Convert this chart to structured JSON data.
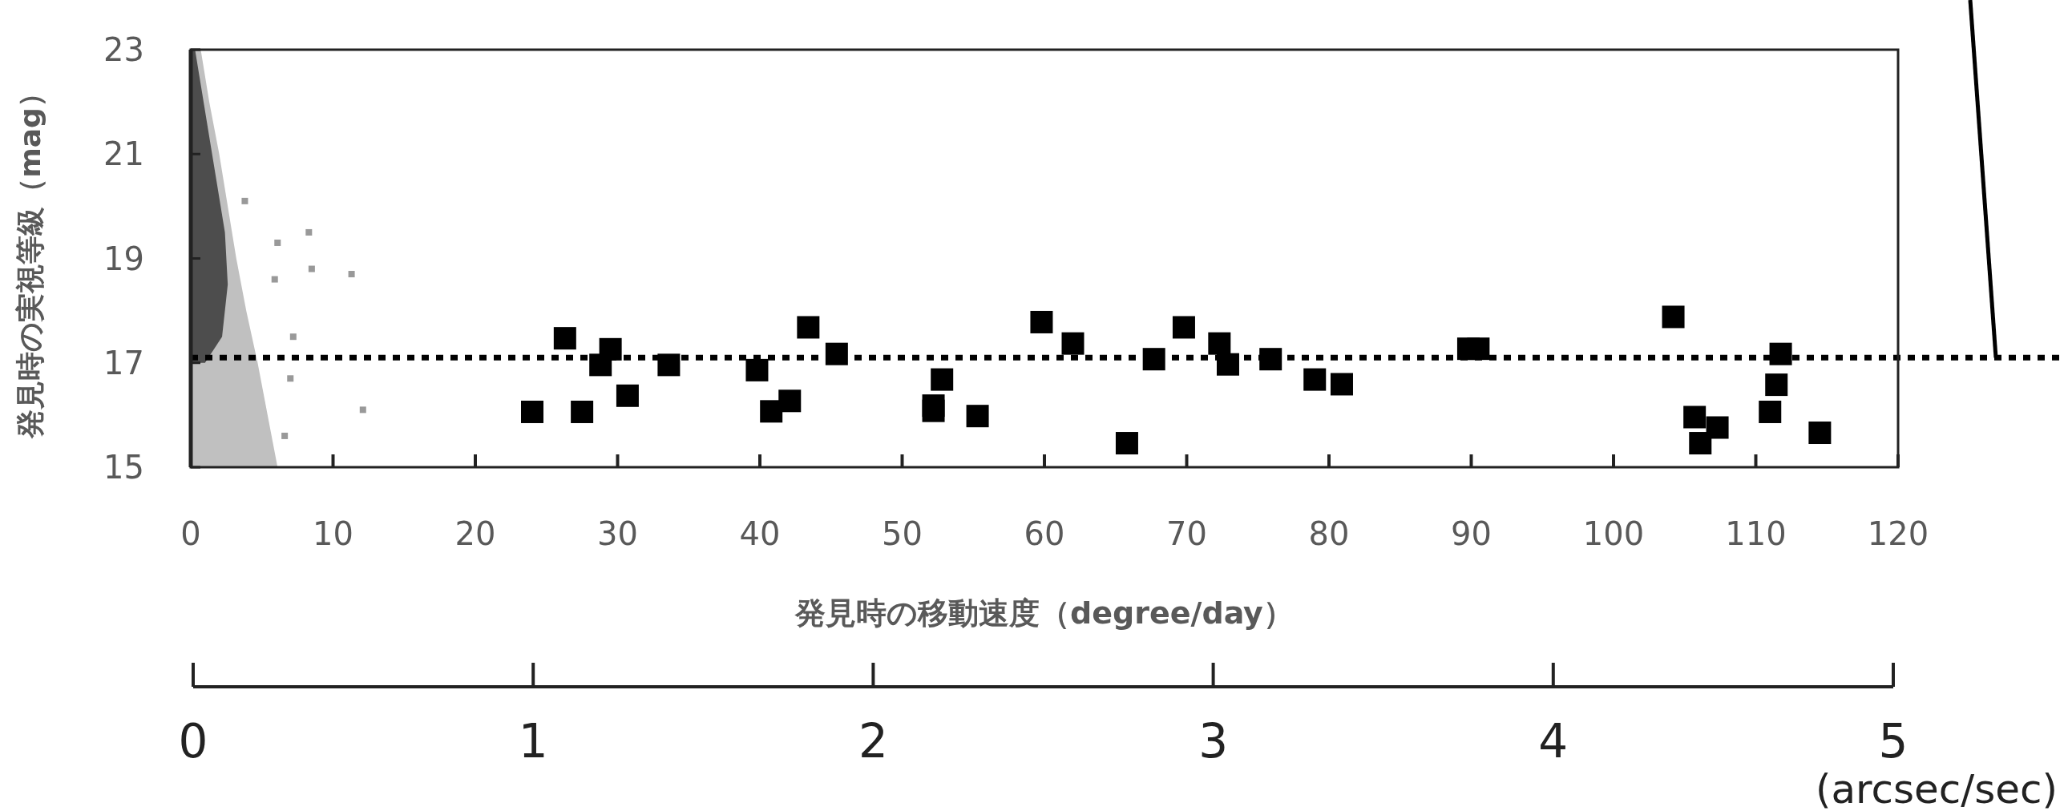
{
  "chart_data": {
    "type": "scatter",
    "xlabel": "発見時の移動速度（degree/day）",
    "ylabel": "発見時の実視等級（mag）",
    "xlim": [
      0,
      120
    ],
    "xticks": [
      0,
      10,
      20,
      30,
      40,
      50,
      60,
      70,
      80,
      90,
      100,
      110,
      120
    ],
    "ylim": [
      15,
      23
    ],
    "yticks": [
      15,
      17,
      19,
      21,
      23
    ],
    "x2lim": [
      0,
      5
    ],
    "x2ticks": [
      0,
      1,
      2,
      3,
      4,
      5
    ],
    "x2label": "(arcsec/sec)",
    "grid": false,
    "series": [
      {
        "type": "area",
        "color": "#c0c0c0",
        "x": [
          0,
          6.1,
          5.4,
          4.7,
          3.9,
          3.2,
          2.6,
          2.0,
          1.3,
          0.7,
          0
        ],
        "values": [
          15,
          15,
          16,
          17,
          18,
          19,
          20,
          21,
          22,
          23,
          23
        ]
      },
      {
        "type": "area",
        "color": "#4d4d4d",
        "x": [
          0,
          1.0,
          2.2,
          2.6,
          2.4,
          1.8,
          1.2,
          0.6,
          0.3,
          0
        ],
        "values": [
          17,
          17,
          17.5,
          18.5,
          19.5,
          20.5,
          21.5,
          22.5,
          23,
          23
        ]
      },
      {
        "marker": "square",
        "color": "#999999",
        "x": [
          8.3,
          8.5,
          12.1,
          6.6,
          7.2,
          3.8,
          6.1,
          5.9,
          11.3,
          7.0
        ],
        "values": [
          19.5,
          18.8,
          16.1,
          15.6,
          17.5,
          20.1,
          19.3,
          18.6,
          18.7,
          16.7
        ]
      },
      {
        "marker": "square",
        "color": "#000000",
        "x": [
          24.0,
          26.3,
          27.5,
          28.8,
          29.5,
          30.7,
          33.6,
          39.8,
          40.8,
          42.1,
          43.4,
          45.4,
          52.2,
          52.2,
          52.8,
          55.3,
          59.8,
          62.0,
          65.8,
          67.7,
          69.8,
          72.3,
          72.9,
          75.9,
          79.0,
          80.9,
          89.8,
          90.5,
          104.2,
          105.7,
          106.1,
          107.3,
          111.0,
          111.45,
          111.75,
          114.5
        ],
        "values": [
          16.06,
          17.47,
          16.06,
          16.96,
          17.26,
          16.37,
          16.96,
          16.86,
          16.07,
          16.27,
          17.68,
          17.17,
          16.18,
          16.08,
          16.68,
          15.98,
          17.78,
          17.37,
          15.46,
          17.07,
          17.68,
          17.37,
          16.97,
          17.07,
          16.68,
          16.59,
          17.27,
          17.27,
          17.88,
          15.96,
          15.46,
          15.76,
          16.06,
          16.58,
          17.17,
          15.66
        ]
      }
    ],
    "ref_lines": [
      {
        "axis": "y",
        "value": 17.1,
        "line_style": "dotted",
        "color": "#000000"
      }
    ]
  }
}
